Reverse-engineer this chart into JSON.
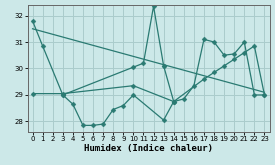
{
  "xlabel": "Humidex (Indice chaleur)",
  "xlim": [
    -0.5,
    23.5
  ],
  "ylim": [
    27.6,
    32.4
  ],
  "yticks": [
    28,
    29,
    30,
    31,
    32
  ],
  "xticks": [
    0,
    1,
    2,
    3,
    4,
    5,
    6,
    7,
    8,
    9,
    10,
    11,
    12,
    13,
    14,
    15,
    16,
    17,
    18,
    19,
    20,
    21,
    22,
    23
  ],
  "bg_color": "#cce8e8",
  "grid_color": "#aacccc",
  "line_color": "#2a7a72",
  "s1x": [
    0,
    1,
    3,
    10,
    11,
    12,
    13
  ],
  "s1y": [
    31.8,
    30.85,
    29.0,
    30.05,
    30.2,
    32.35,
    30.1
  ],
  "s2x": [
    13,
    14,
    15,
    16,
    17,
    18,
    19,
    20,
    21,
    22,
    23
  ],
  "s2y": [
    30.1,
    28.75,
    28.85,
    29.35,
    31.1,
    31.0,
    30.5,
    30.55,
    31.0,
    29.0,
    29.0
  ],
  "s3x": [
    3,
    4,
    5,
    6,
    7,
    8,
    9,
    10,
    13,
    14
  ],
  "s3y": [
    29.0,
    28.65,
    27.85,
    27.85,
    27.9,
    28.45,
    28.6,
    29.0,
    28.05,
    28.75
  ],
  "s4x": [
    0,
    3,
    10,
    14,
    17,
    18,
    19,
    20,
    21,
    22,
    23
  ],
  "s4y": [
    29.05,
    29.05,
    29.35,
    28.75,
    29.6,
    29.85,
    30.1,
    30.35,
    30.6,
    30.85,
    29.0
  ]
}
